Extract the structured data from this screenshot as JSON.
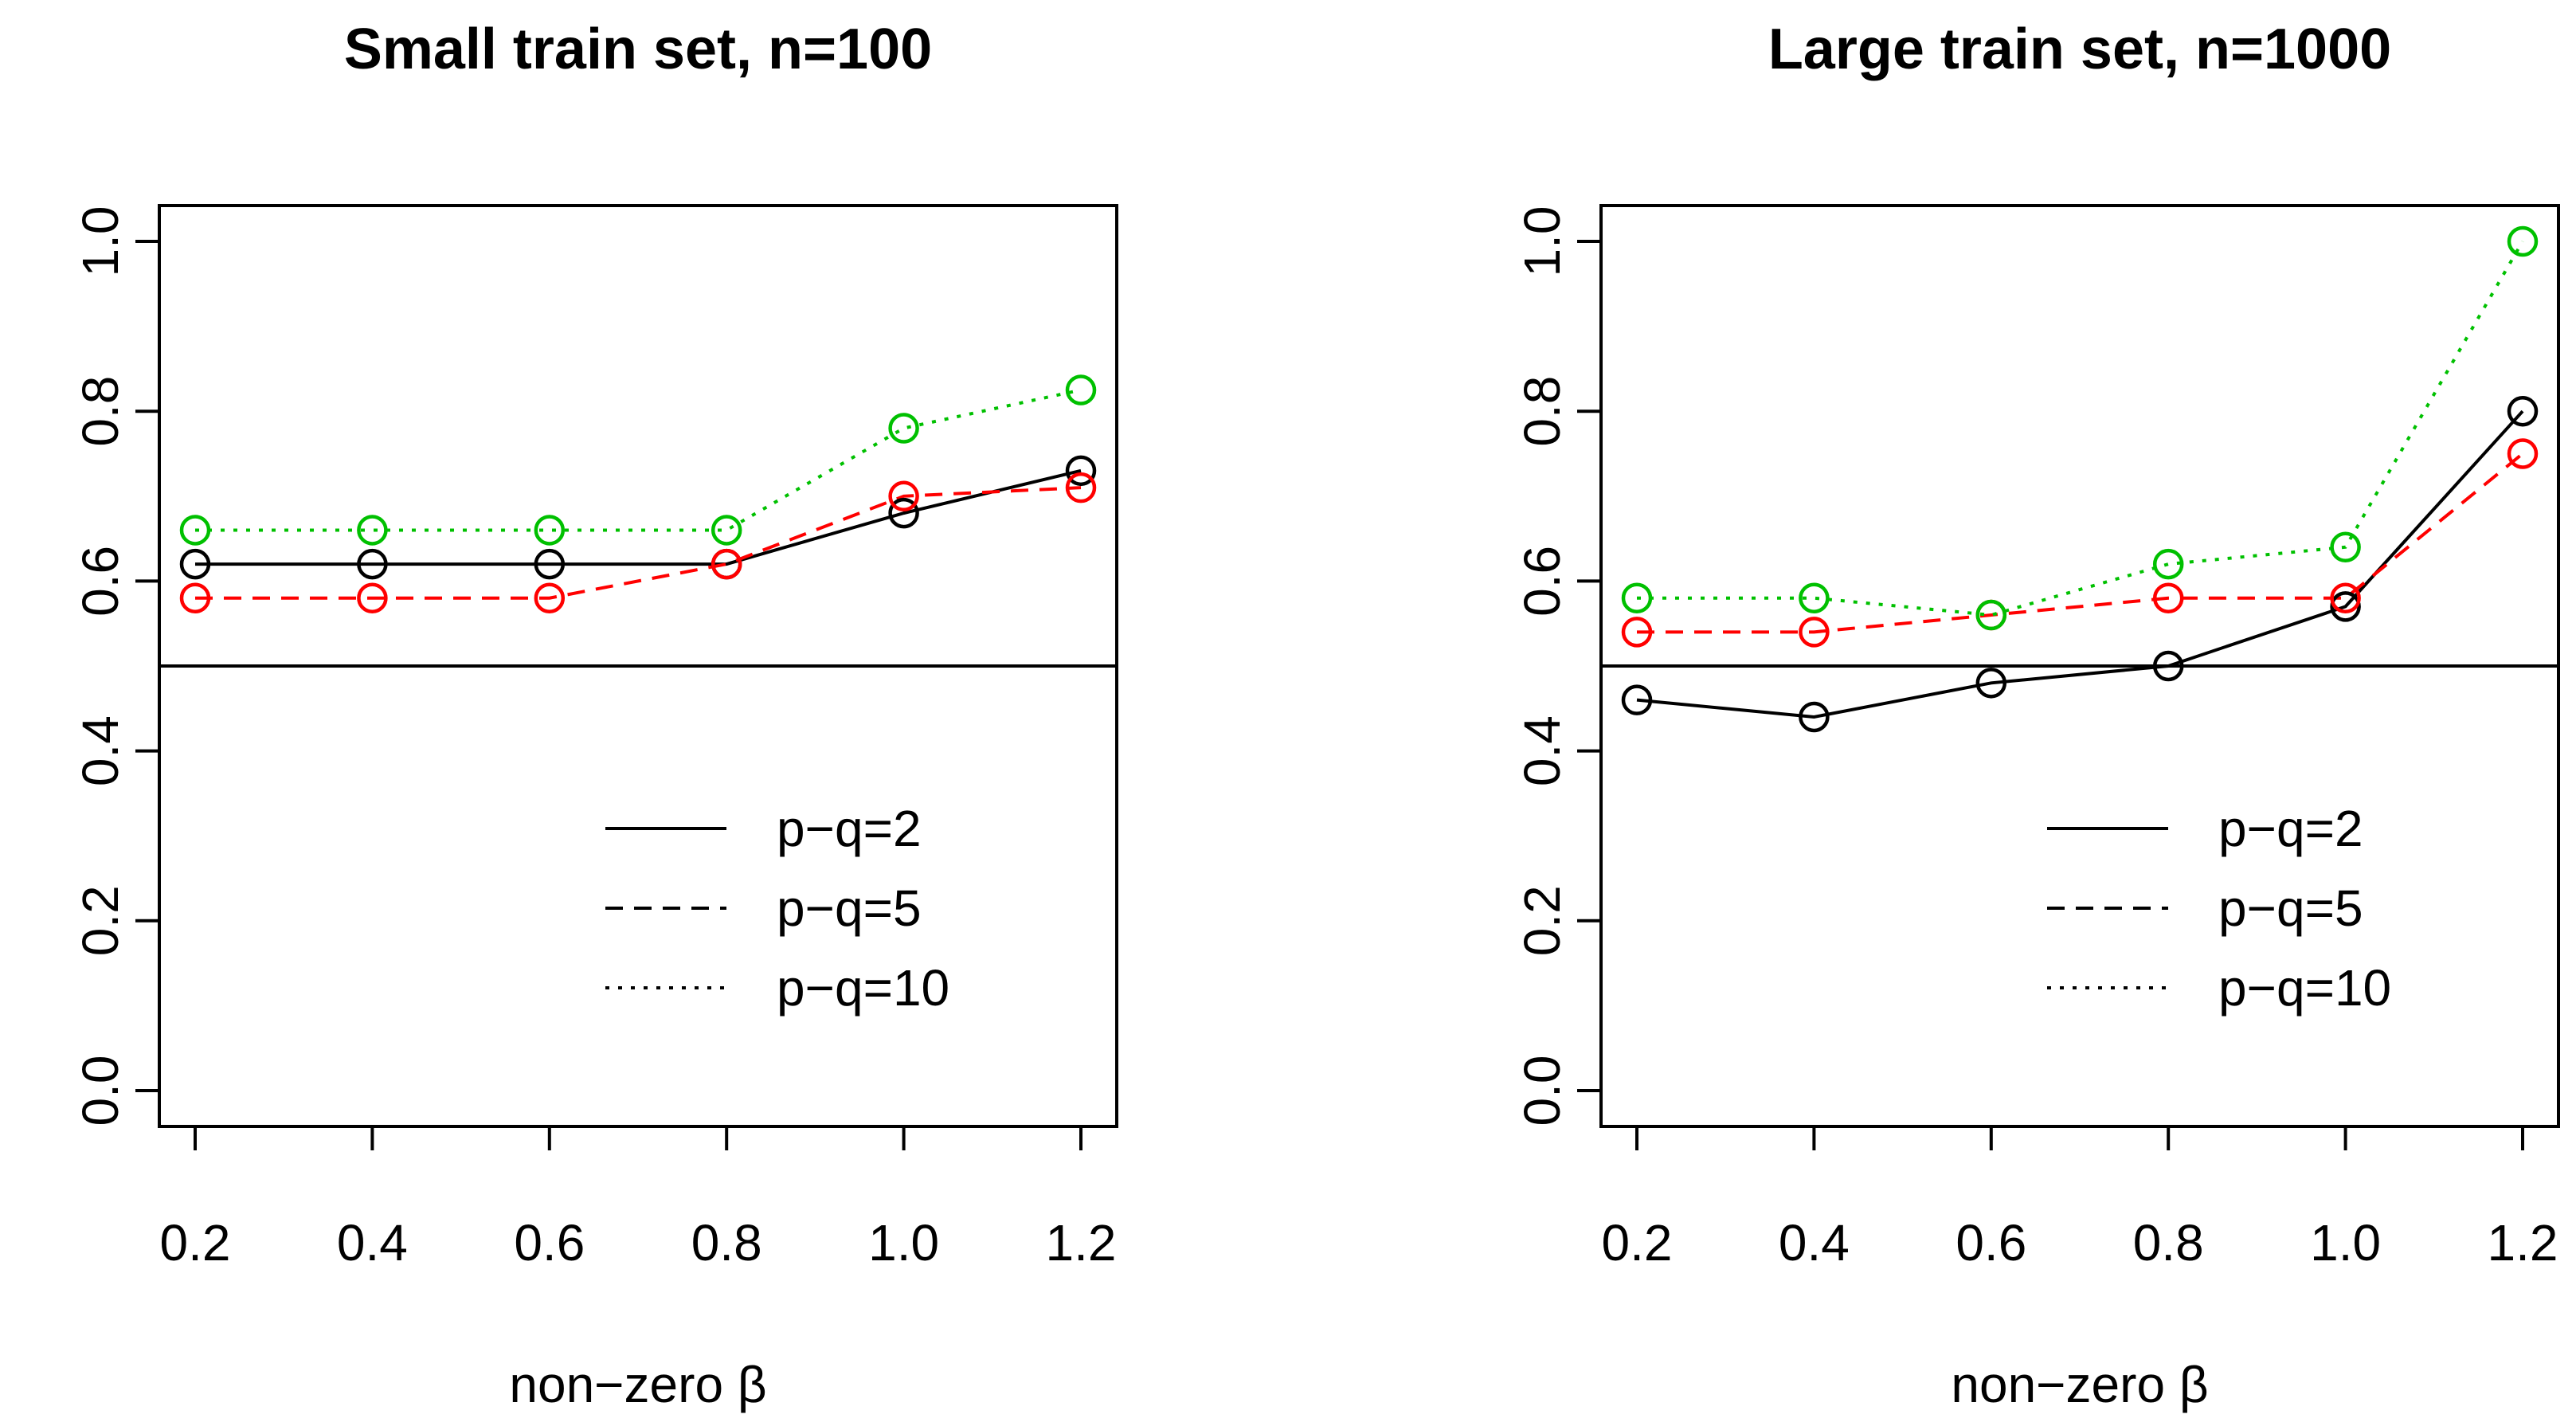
{
  "chart_data": [
    {
      "type": "line",
      "title": "Small train set, n=100",
      "xlabel": "non−zero β",
      "ylabel": "",
      "x": [
        "0.2",
        "0.4",
        "0.6",
        "0.8",
        "1.0",
        "1.2"
      ],
      "yticks": [
        "0.0",
        "0.2",
        "0.4",
        "0.6",
        "0.8",
        "1.0"
      ],
      "ylim": [
        0,
        1.04
      ],
      "reference_line": 0.5,
      "legend_position": "bottom-right",
      "series": [
        {
          "name": "p−q=2",
          "line": "solid",
          "color": "#000000",
          "values": [
            0.62,
            0.62,
            0.62,
            0.62,
            0.68,
            0.73
          ]
        },
        {
          "name": "p−q=5",
          "line": "dashed",
          "color": "#ff0000",
          "values": [
            0.58,
            0.58,
            0.58,
            0.62,
            0.7,
            0.71
          ]
        },
        {
          "name": "p−q=10",
          "line": "dotted",
          "color": "#00c000",
          "values": [
            0.66,
            0.66,
            0.66,
            0.66,
            0.78,
            0.825
          ]
        }
      ]
    },
    {
      "type": "line",
      "title": "Large train set, n=1000",
      "xlabel": "non−zero β",
      "ylabel": "",
      "x": [
        "0.2",
        "0.4",
        "0.6",
        "0.8",
        "1.0",
        "1.2"
      ],
      "yticks": [
        "0.0",
        "0.2",
        "0.4",
        "0.6",
        "0.8",
        "1.0"
      ],
      "ylim": [
        0,
        1.04
      ],
      "reference_line": 0.5,
      "legend_position": "bottom-right",
      "series": [
        {
          "name": "p−q=2",
          "line": "solid",
          "color": "#000000",
          "values": [
            0.46,
            0.44,
            0.48,
            0.5,
            0.57,
            0.8
          ]
        },
        {
          "name": "p−q=5",
          "line": "dashed",
          "color": "#ff0000",
          "values": [
            0.54,
            0.54,
            0.56,
            0.58,
            0.58,
            0.75
          ]
        },
        {
          "name": "p−q=10",
          "line": "dotted",
          "color": "#00c000",
          "values": [
            0.58,
            0.58,
            0.56,
            0.62,
            0.64,
            1.0
          ]
        }
      ]
    }
  ]
}
